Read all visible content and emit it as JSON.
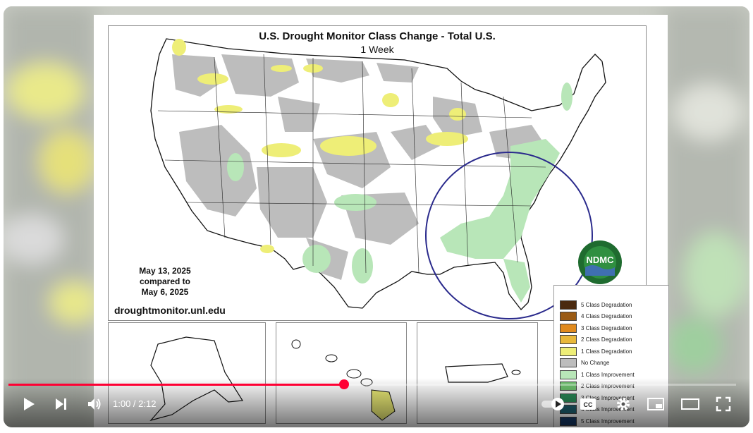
{
  "slide": {
    "title": "U.S. Drought Monitor Class Change - Total U.S.",
    "subtitle": "1 Week",
    "date_line1": "May 13, 2025",
    "date_line2": "compared to",
    "date_line3": "May 6, 2025",
    "website": "droughtmonitor.unl.edu",
    "logo_text": "NDMC",
    "legend": [
      {
        "label": "5 Class Degradation",
        "color": "#4a2a10"
      },
      {
        "label": "4 Class Degradation",
        "color": "#9a5a14"
      },
      {
        "label": "3 Class Degradation",
        "color": "#e08a1e"
      },
      {
        "label": "2 Class Degradation",
        "color": "#e8b83a"
      },
      {
        "label": "1 Class Degradation",
        "color": "#eeee77"
      },
      {
        "label": "No Change",
        "color": "#bdbdbd"
      },
      {
        "label": "1 Class Improvement",
        "color": "#b8e6b8"
      },
      {
        "label": "2 Class Improvement",
        "color": "#6fc26f"
      },
      {
        "label": "3 Class Improvement",
        "color": "#2a8f5a"
      },
      {
        "label": "4 Class Improvement",
        "color": "#1d5f6f"
      },
      {
        "label": "5 Class Improvement",
        "color": "#163a6a"
      }
    ]
  },
  "player": {
    "progress_fraction": 0.4615,
    "current_time": "1:00",
    "duration": "2:12",
    "accent_color": "#ff0033"
  }
}
